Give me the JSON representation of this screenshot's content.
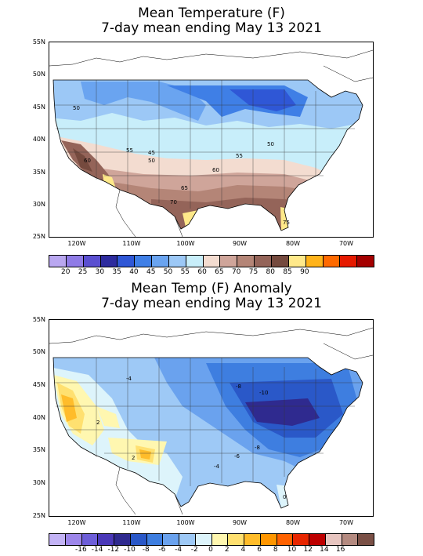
{
  "panels": [
    {
      "title_line1": "Mean Temperature (F)",
      "title_line2": "7-day mean ending May 13 2021",
      "lat_labels": [
        "55N",
        "50N",
        "45N",
        "40N",
        "35N",
        "30N",
        "25N"
      ],
      "lon_labels": [
        "120W",
        "110W",
        "100W",
        "90W",
        "80W",
        "70W"
      ],
      "colorbar_colors": [
        "#b9a7f0",
        "#8f7be6",
        "#5a4fd0",
        "#2d2b9e",
        "#2f57d6",
        "#3f7fe6",
        "#6aa4f0",
        "#9cc8f6",
        "#c8eefa",
        "#f3dcd0",
        "#cfa59a",
        "#b48577",
        "#946459",
        "#754a3e",
        "#ffe98a",
        "#ffb31a",
        "#ff6a00",
        "#e61a00",
        "#a40000"
      ],
      "colorbar_labels": [
        "20",
        "25",
        "30",
        "35",
        "40",
        "45",
        "50",
        "55",
        "60",
        "65",
        "70",
        "75",
        "80",
        "85",
        "90"
      ],
      "contour_labels": [
        "50",
        "55",
        "45",
        "50",
        "50",
        "55",
        "60",
        "60",
        "65",
        "70",
        "75"
      ]
    },
    {
      "title_line1": "Mean Temp (F) Anomaly",
      "title_line2": "7-day mean ending May 13 2021",
      "lat_labels": [
        "55N",
        "50N",
        "45N",
        "40N",
        "35N",
        "30N",
        "25N"
      ],
      "lon_labels": [
        "120W",
        "110W",
        "100W",
        "90W",
        "80W",
        "70W"
      ],
      "colorbar_colors": [
        "#c3b3f5",
        "#9d86ea",
        "#6d5ed8",
        "#4a38b8",
        "#2f2a8f",
        "#2a58c8",
        "#3e7ee0",
        "#6aa2ee",
        "#9ec9f6",
        "#ddf4fb",
        "#fff7b0",
        "#ffe070",
        "#ffbc2a",
        "#ff9600",
        "#ff6200",
        "#e82600",
        "#bd0000",
        "#e7c5c0",
        "#b48a80",
        "#7a5046"
      ],
      "colorbar_labels": [
        "-16",
        "-14",
        "-12",
        "-10",
        "-8",
        "-6",
        "-4",
        "-2",
        "0",
        "2",
        "4",
        "6",
        "8",
        "10",
        "12",
        "14",
        "16"
      ],
      "contour_labels": [
        "-4",
        "-8",
        "-10",
        "-6",
        "-8",
        "-4",
        "2",
        "2",
        "0"
      ]
    }
  ],
  "colors": {
    "frame": "#000000",
    "state_lines": "#333333"
  }
}
